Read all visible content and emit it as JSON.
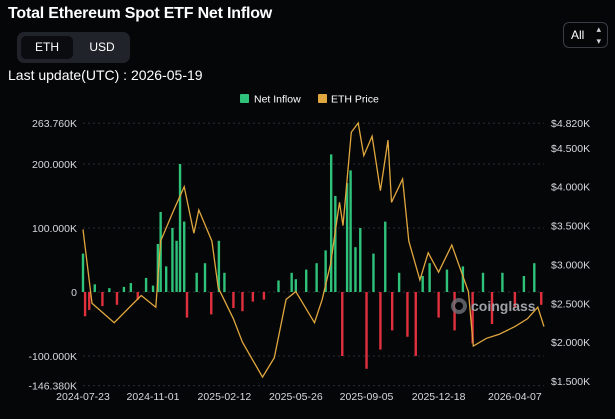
{
  "header": {
    "title": "Total Ethereum Spot ETF Net Inflow",
    "unit_options": [
      "ETH",
      "USD"
    ],
    "selected_unit": "ETH",
    "range_label": "All",
    "last_update": "Last update(UTC) : 2026-05-19"
  },
  "watermark": "coinglass",
  "colors": {
    "inflow_positive": "#2ec27a",
    "inflow_negative": "#e0303e",
    "price_line": "#e0a73e",
    "background": "#050608"
  },
  "chart_data": {
    "type": "bar",
    "legend": [
      "Net Inflow",
      "ETH Price"
    ],
    "legend_position": "top-center",
    "left_axis": {
      "ticks": [
        {
          "label": "263.760K",
          "value": 263760
        },
        {
          "label": "200.000K",
          "value": 200000
        },
        {
          "label": "100.000K",
          "value": 100000
        },
        {
          "label": "0",
          "value": 0
        },
        {
          "label": "-100.000K",
          "value": -100000
        },
        {
          "label": "-146.380K",
          "value": -146380
        }
      ],
      "range": [
        -146380,
        263760
      ]
    },
    "right_axis": {
      "ticks": [
        {
          "label": "$4.820K",
          "value": 4820
        },
        {
          "label": "$4.500K",
          "value": 4500
        },
        {
          "label": "$4.000K",
          "value": 4000
        },
        {
          "label": "$3.500K",
          "value": 3500
        },
        {
          "label": "$3.000K",
          "value": 3000
        },
        {
          "label": "$2.500K",
          "value": 2500
        },
        {
          "label": "$2.000K",
          "value": 2000
        },
        {
          "label": "$1.500K",
          "value": 1500
        }
      ],
      "range": [
        1500,
        4820
      ]
    },
    "x_ticks": [
      "2024-07-23",
      "2024-11-01",
      "2025-02-12",
      "2025-05-26",
      "2025-09-05",
      "2025-12-18",
      "2026-04-07"
    ],
    "x_range": [
      "2024-07-23",
      "2026-05-19"
    ],
    "net_inflow_series": [
      {
        "x": "2024-07-23",
        "y": 60000
      },
      {
        "x": "2024-07-26",
        "y": -38000
      },
      {
        "x": "2024-08-01",
        "y": -28000
      },
      {
        "x": "2024-08-09",
        "y": 12000
      },
      {
        "x": "2024-08-20",
        "y": -22000
      },
      {
        "x": "2024-08-30",
        "y": 6000
      },
      {
        "x": "2024-09-10",
        "y": -20000
      },
      {
        "x": "2024-09-20",
        "y": 8000
      },
      {
        "x": "2024-09-30",
        "y": 14000
      },
      {
        "x": "2024-10-10",
        "y": -12000
      },
      {
        "x": "2024-10-22",
        "y": 22000
      },
      {
        "x": "2024-11-01",
        "y": 10000
      },
      {
        "x": "2024-11-08",
        "y": 75000
      },
      {
        "x": "2024-11-12",
        "y": 125000
      },
      {
        "x": "2024-11-20",
        "y": 40000
      },
      {
        "x": "2024-11-29",
        "y": 100000
      },
      {
        "x": "2024-12-05",
        "y": 80000
      },
      {
        "x": "2024-12-10",
        "y": 200000
      },
      {
        "x": "2024-12-16",
        "y": 110000
      },
      {
        "x": "2024-12-20",
        "y": -40000
      },
      {
        "x": "2025-01-03",
        "y": 30000
      },
      {
        "x": "2025-01-15",
        "y": 45000
      },
      {
        "x": "2025-01-24",
        "y": -35000
      },
      {
        "x": "2025-02-04",
        "y": 80000
      },
      {
        "x": "2025-02-12",
        "y": 30000
      },
      {
        "x": "2025-02-25",
        "y": -25000
      },
      {
        "x": "2025-03-10",
        "y": -30000
      },
      {
        "x": "2025-03-25",
        "y": -15000
      },
      {
        "x": "2025-04-10",
        "y": -12000
      },
      {
        "x": "2025-05-01",
        "y": 18000
      },
      {
        "x": "2025-05-20",
        "y": 30000
      },
      {
        "x": "2025-05-26",
        "y": 20000
      },
      {
        "x": "2025-06-10",
        "y": 35000
      },
      {
        "x": "2025-06-25",
        "y": 45000
      },
      {
        "x": "2025-07-08",
        "y": 65000
      },
      {
        "x": "2025-07-16",
        "y": 215000
      },
      {
        "x": "2025-07-22",
        "y": 150000
      },
      {
        "x": "2025-08-01",
        "y": -100000
      },
      {
        "x": "2025-08-08",
        "y": 170000
      },
      {
        "x": "2025-08-13",
        "y": 190000
      },
      {
        "x": "2025-08-20",
        "y": 70000
      },
      {
        "x": "2025-08-27",
        "y": 100000
      },
      {
        "x": "2025-09-05",
        "y": -120000
      },
      {
        "x": "2025-09-15",
        "y": 60000
      },
      {
        "x": "2025-09-25",
        "y": -90000
      },
      {
        "x": "2025-10-02",
        "y": 110000
      },
      {
        "x": "2025-10-12",
        "y": -60000
      },
      {
        "x": "2025-10-22",
        "y": 30000
      },
      {
        "x": "2025-11-03",
        "y": -70000
      },
      {
        "x": "2025-11-15",
        "y": -100000
      },
      {
        "x": "2025-11-25",
        "y": 25000
      },
      {
        "x": "2025-12-05",
        "y": 45000
      },
      {
        "x": "2025-12-18",
        "y": -40000
      },
      {
        "x": "2025-12-30",
        "y": 35000
      },
      {
        "x": "2026-01-10",
        "y": -60000
      },
      {
        "x": "2026-01-22",
        "y": 40000
      },
      {
        "x": "2026-02-05",
        "y": -80000
      },
      {
        "x": "2026-02-20",
        "y": 30000
      },
      {
        "x": "2026-03-05",
        "y": -50000
      },
      {
        "x": "2026-03-20",
        "y": 30000
      },
      {
        "x": "2026-04-07",
        "y": -25000
      },
      {
        "x": "2026-04-20",
        "y": 25000
      },
      {
        "x": "2026-05-05",
        "y": 45000
      },
      {
        "x": "2026-05-15",
        "y": -20000
      }
    ],
    "eth_price_series": [
      {
        "x": "2024-07-23",
        "y": 3450
      },
      {
        "x": "2024-08-05",
        "y": 2500
      },
      {
        "x": "2024-09-06",
        "y": 2250
      },
      {
        "x": "2024-10-15",
        "y": 2600
      },
      {
        "x": "2024-11-05",
        "y": 2450
      },
      {
        "x": "2024-11-12",
        "y": 3300
      },
      {
        "x": "2024-12-01",
        "y": 3700
      },
      {
        "x": "2024-12-16",
        "y": 4000
      },
      {
        "x": "2024-12-30",
        "y": 3400
      },
      {
        "x": "2025-01-06",
        "y": 3700
      },
      {
        "x": "2025-01-25",
        "y": 3300
      },
      {
        "x": "2025-02-03",
        "y": 2700
      },
      {
        "x": "2025-02-25",
        "y": 2300
      },
      {
        "x": "2025-03-10",
        "y": 2000
      },
      {
        "x": "2025-04-08",
        "y": 1550
      },
      {
        "x": "2025-04-25",
        "y": 1800
      },
      {
        "x": "2025-05-12",
        "y": 2550
      },
      {
        "x": "2025-05-26",
        "y": 2650
      },
      {
        "x": "2025-06-22",
        "y": 2250
      },
      {
        "x": "2025-07-03",
        "y": 2550
      },
      {
        "x": "2025-07-15",
        "y": 3000
      },
      {
        "x": "2025-07-28",
        "y": 3800
      },
      {
        "x": "2025-08-02",
        "y": 3500
      },
      {
        "x": "2025-08-14",
        "y": 4700
      },
      {
        "x": "2025-08-24",
        "y": 4820
      },
      {
        "x": "2025-09-01",
        "y": 4400
      },
      {
        "x": "2025-09-13",
        "y": 4650
      },
      {
        "x": "2025-09-25",
        "y": 3950
      },
      {
        "x": "2025-10-06",
        "y": 4600
      },
      {
        "x": "2025-10-11",
        "y": 3800
      },
      {
        "x": "2025-10-27",
        "y": 4100
      },
      {
        "x": "2025-11-05",
        "y": 3300
      },
      {
        "x": "2025-11-21",
        "y": 2800
      },
      {
        "x": "2025-12-03",
        "y": 3150
      },
      {
        "x": "2025-12-18",
        "y": 2900
      },
      {
        "x": "2026-01-06",
        "y": 3250
      },
      {
        "x": "2026-01-30",
        "y": 2650
      },
      {
        "x": "2026-02-06",
        "y": 1950
      },
      {
        "x": "2026-02-25",
        "y": 2050
      },
      {
        "x": "2026-03-15",
        "y": 2100
      },
      {
        "x": "2026-04-07",
        "y": 2200
      },
      {
        "x": "2026-04-25",
        "y": 2300
      },
      {
        "x": "2026-05-10",
        "y": 2450
      },
      {
        "x": "2026-05-19",
        "y": 2200
      }
    ]
  }
}
